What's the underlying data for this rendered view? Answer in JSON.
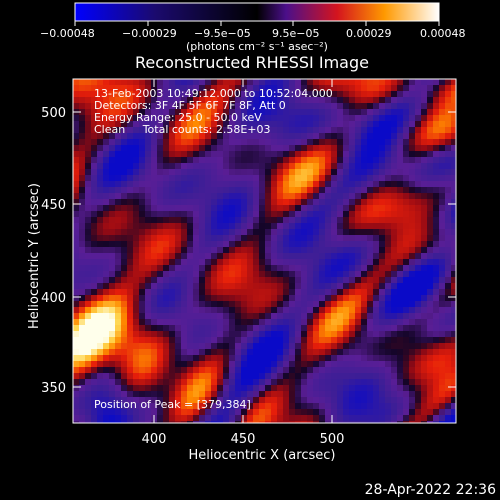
{
  "colorbar": {
    "tick_labels": [
      "−0.00048",
      "−0.00029",
      "−9.5e−05",
      "9.5e−05",
      "0.00029",
      "0.00048"
    ],
    "unit_label": "(photons cm⁻² s⁻¹ asec⁻²)",
    "colors": [
      "#0000ff",
      "#000000",
      "#4b0f8a",
      "#ff0000",
      "#ff9900",
      "#ffffff"
    ]
  },
  "chart_data": {
    "type": "heatmap",
    "title": "Reconstructed RHESSI Image",
    "xlabel": "Heliocentric X (arcsec)",
    "ylabel": "Heliocentric Y (arcsec)",
    "xlim": [
      358,
      548
    ],
    "ylim": [
      330,
      522
    ],
    "x_ticks": [
      "400",
      "450",
      "500"
    ],
    "y_ticks": [
      "350",
      "400",
      "450",
      "500"
    ],
    "annotations": [
      "13-Feb-2003 10:49:12.000 to 10:52:04.000",
      "Detectors: 3F 4F 5F 6F 7F 8F, Att 0",
      "Energy Range: 25.0 - 50.0 keV",
      "Clean     Total counts: 2.58E+03"
    ],
    "peak_label": "Position of Peak = [379,384]",
    "peak": [
      379,
      384
    ],
    "value_range": [
      -0.00048,
      0.00048
    ]
  },
  "footer": {
    "timestamp": "28-Apr-2022 22:36"
  }
}
